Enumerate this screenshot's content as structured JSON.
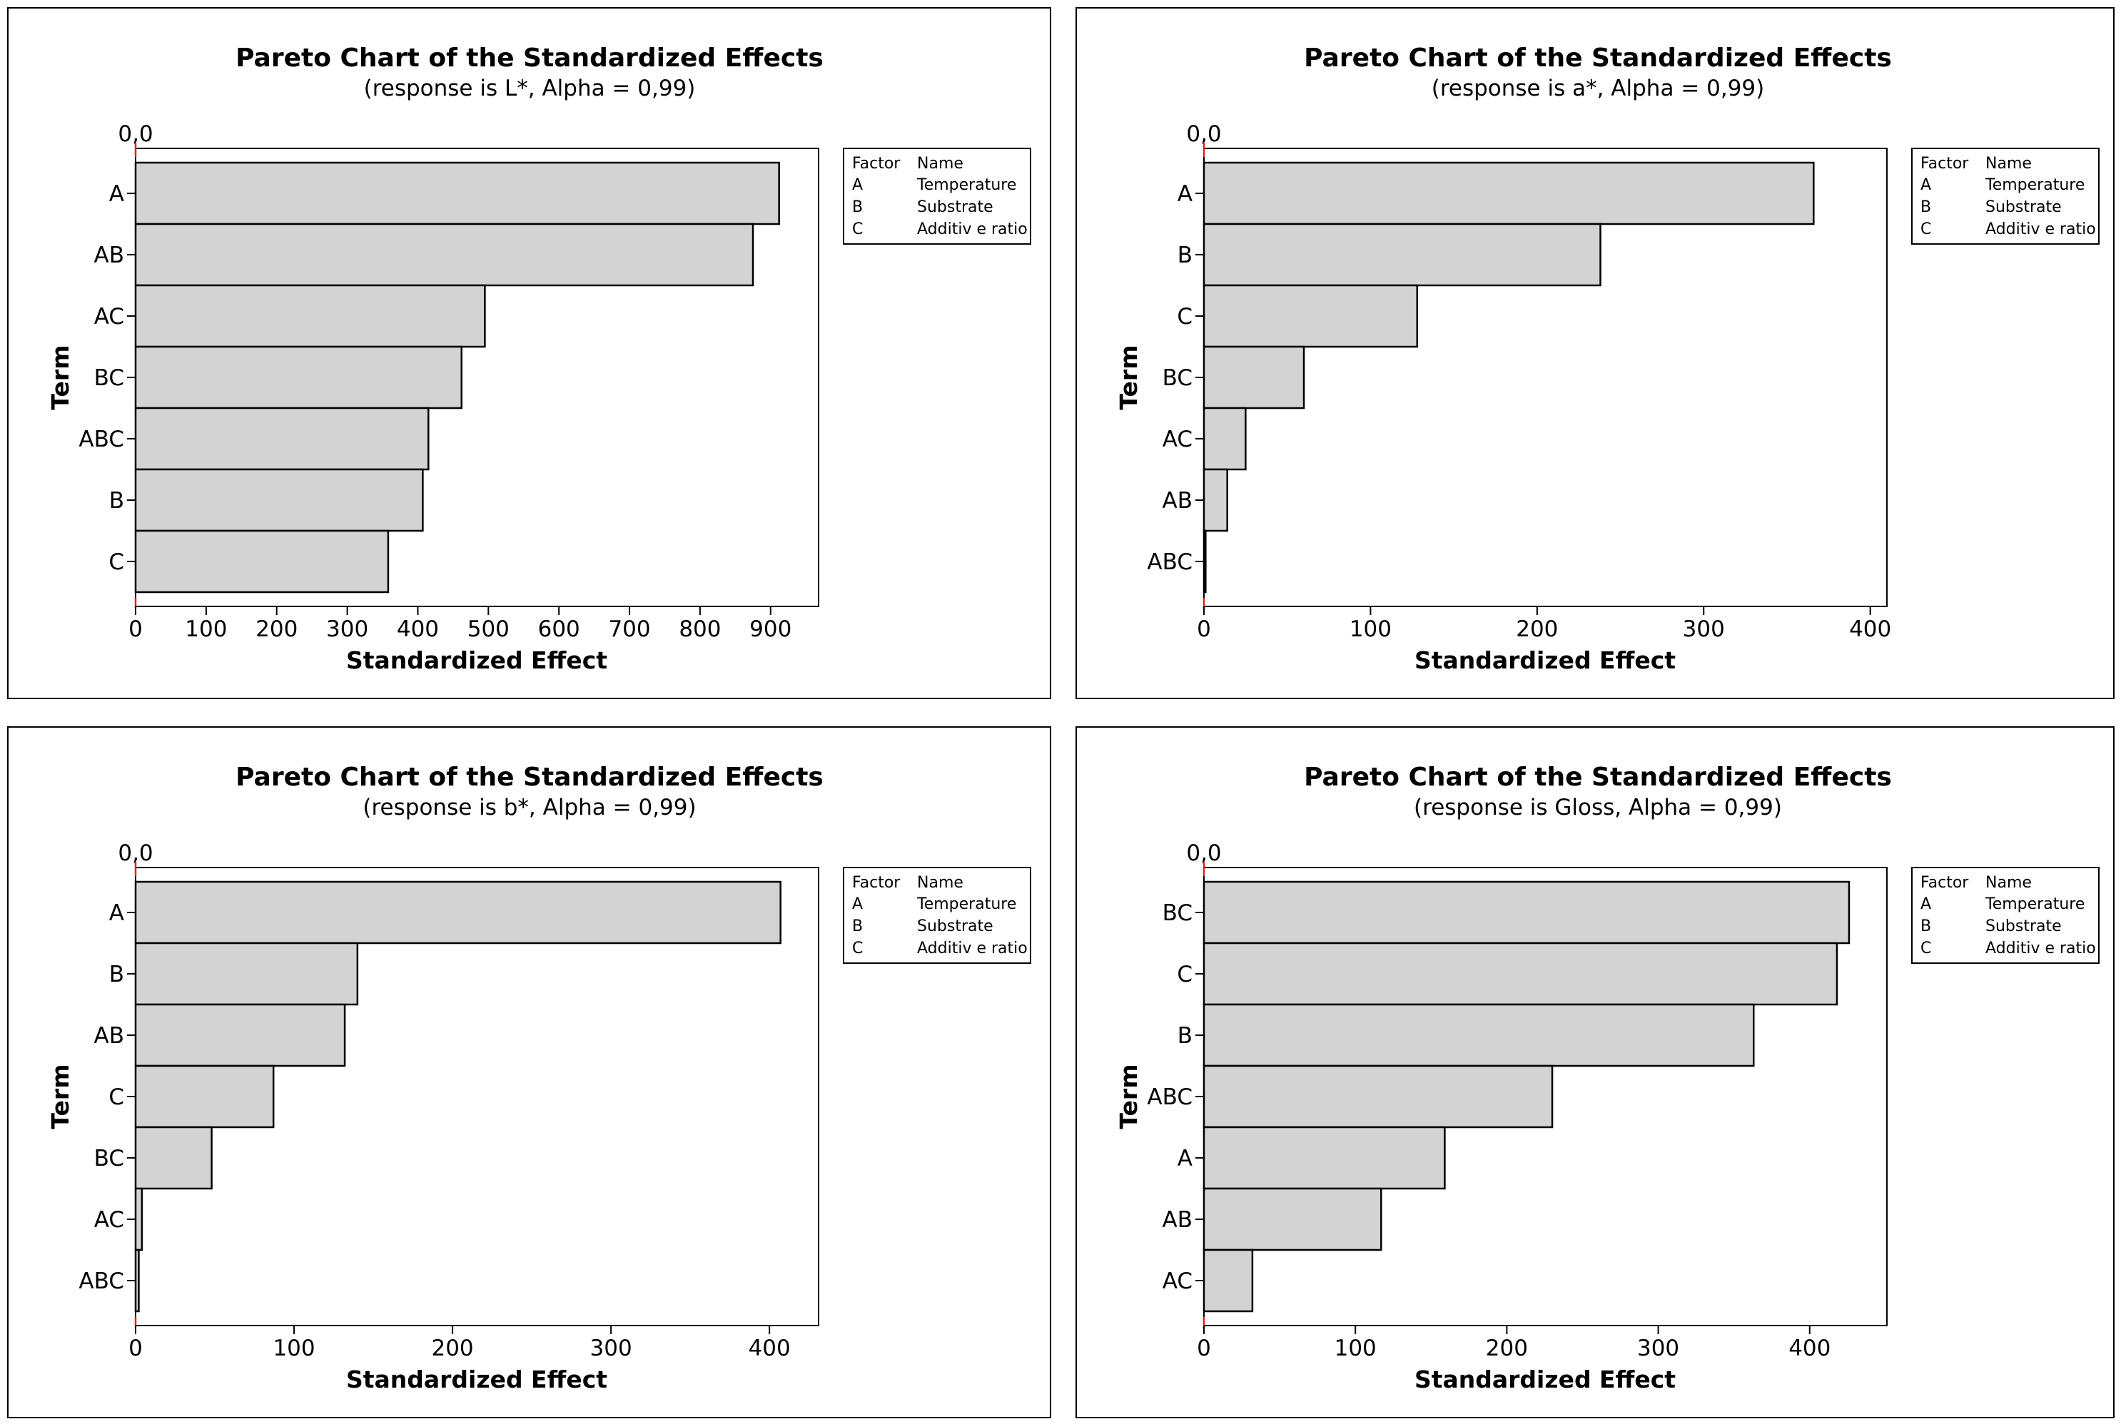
{
  "legend": {
    "header_factor": "Factor",
    "header_name": "Name",
    "rows": [
      {
        "factor": "A",
        "name": "Temperature"
      },
      {
        "factor": "B",
        "name": "Substrate"
      },
      {
        "factor": "C",
        "name": "Additiv e ratio"
      }
    ]
  },
  "chart_data": [
    {
      "type": "bar",
      "orientation": "horizontal",
      "title": "Pareto Chart of the Standardized Effects",
      "subtitle": "(response is L*, Alpha = 0,99)",
      "xlabel": "Standardized Effect",
      "ylabel": "Term",
      "reference_label": "0,0",
      "categories": [
        "A",
        "AB",
        "AC",
        "BC",
        "ABC",
        "B",
        "C"
      ],
      "values": [
        912,
        875,
        495,
        462,
        415,
        407,
        358
      ],
      "xlim": [
        0,
        968
      ],
      "xticks": [
        0,
        100,
        200,
        300,
        400,
        500,
        600,
        700,
        800,
        900
      ],
      "legend_position": "right"
    },
    {
      "type": "bar",
      "orientation": "horizontal",
      "title": "Pareto Chart of the Standardized Effects",
      "subtitle": "(response is a*, Alpha = 0,99)",
      "xlabel": "Standardized Effect",
      "ylabel": "Term",
      "reference_label": "0,0",
      "categories": [
        "A",
        "B",
        "C",
        "BC",
        "AC",
        "AB",
        "ABC"
      ],
      "values": [
        366,
        238,
        128,
        60,
        25,
        14,
        1
      ],
      "xlim": [
        0,
        410
      ],
      "xticks": [
        0,
        100,
        200,
        300,
        400
      ],
      "legend_position": "right"
    },
    {
      "type": "bar",
      "orientation": "horizontal",
      "title": "Pareto Chart of the Standardized Effects",
      "subtitle": "(response is b*, Alpha = 0,99)",
      "xlabel": "Standardized Effect",
      "ylabel": "Term",
      "reference_label": "0,0",
      "categories": [
        "A",
        "B",
        "AB",
        "C",
        "BC",
        "AC",
        "ABC"
      ],
      "values": [
        407,
        140,
        132,
        87,
        48,
        4,
        2
      ],
      "xlim": [
        0,
        431
      ],
      "xticks": [
        0,
        100,
        200,
        300,
        400
      ],
      "legend_position": "right"
    },
    {
      "type": "bar",
      "orientation": "horizontal",
      "title": "Pareto Chart of the Standardized Effects",
      "subtitle": "(response is Gloss, Alpha = 0,99)",
      "xlabel": "Standardized Effect",
      "ylabel": "Term",
      "reference_label": "0,0",
      "categories": [
        "BC",
        "C",
        "B",
        "ABC",
        "A",
        "AB",
        "AC"
      ],
      "values": [
        426,
        418,
        363,
        230,
        159,
        117,
        32
      ],
      "xlim": [
        0,
        451
      ],
      "xticks": [
        0,
        100,
        200,
        300,
        400
      ],
      "legend_position": "right"
    }
  ]
}
